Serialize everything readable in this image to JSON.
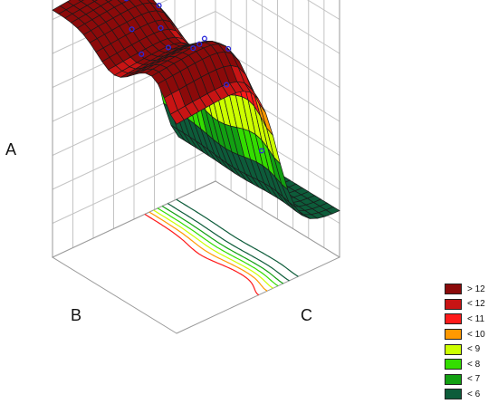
{
  "chart_data": {
    "type": "surface",
    "title": "",
    "axes": {
      "x": "B",
      "y": "C",
      "z": "A"
    },
    "legend": {
      "placement": "bottom-right",
      "items": [
        {
          "label": "> 12",
          "color": "#8b0a0a"
        },
        {
          "label": "< 12",
          "color": "#c81414"
        },
        {
          "label": "< 11",
          "color": "#ff1a1a"
        },
        {
          "label": "< 10",
          "color": "#ff9900"
        },
        {
          "label": "< 9",
          "color": "#ccff00"
        },
        {
          "label": "< 8",
          "color": "#33dd00"
        },
        {
          "label": "< 7",
          "color": "#12a012"
        },
        {
          "label": "< 6",
          "color": "#0d5c3a"
        }
      ]
    },
    "grid": true,
    "surface_shape": "high plateau (> 12) across most of the B range, falling through < 10 ... < 6 toward high C",
    "contours_on_floor": true,
    "observed_points": true
  }
}
